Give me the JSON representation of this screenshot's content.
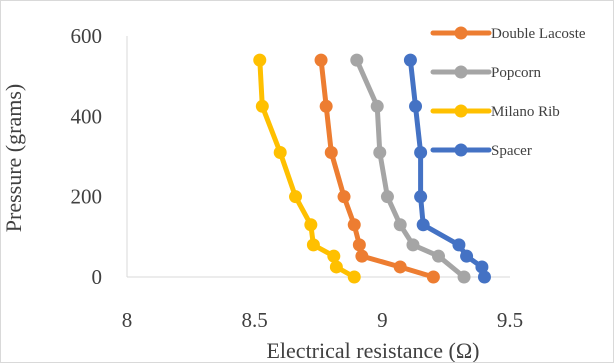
{
  "chart_data": {
    "type": "line",
    "title": "",
    "xlabel": "Electrical resistance (Ω)",
    "ylabel": "Pressure (grams)",
    "xlim": [
      8,
      9.5
    ],
    "ylim": [
      0,
      600
    ],
    "xticks": [
      "8",
      "8.5",
      "9",
      "9.5"
    ],
    "yticks": [
      "0",
      "200",
      "400",
      "600"
    ],
    "grid": false,
    "legend_position": "top-right",
    "series": [
      {
        "name": "Double Lacoste",
        "color": "#ED7D31",
        "points": [
          [
            9.2,
            0
          ],
          [
            9.07,
            25
          ],
          [
            8.92,
            52
          ],
          [
            8.91,
            80
          ],
          [
            8.89,
            130
          ],
          [
            8.85,
            200
          ],
          [
            8.8,
            310
          ],
          [
            8.78,
            425
          ],
          [
            8.76,
            540
          ]
        ]
      },
      {
        "name": "Popcorn",
        "color": "#A5A5A5",
        "points": [
          [
            9.32,
            0
          ],
          [
            9.22,
            52
          ],
          [
            9.12,
            80
          ],
          [
            9.07,
            130
          ],
          [
            9.02,
            200
          ],
          [
            8.99,
            310
          ],
          [
            8.98,
            425
          ],
          [
            8.9,
            540
          ]
        ]
      },
      {
        "name": "Milano Rib",
        "color": "#FFC000",
        "points": [
          [
            8.89,
            0
          ],
          [
            8.82,
            25
          ],
          [
            8.81,
            52
          ],
          [
            8.73,
            80
          ],
          [
            8.72,
            130
          ],
          [
            8.66,
            200
          ],
          [
            8.6,
            310
          ],
          [
            8.53,
            425
          ],
          [
            8.52,
            540
          ]
        ]
      },
      {
        "name": "Spacer",
        "color": "#4472C4",
        "points": [
          [
            9.4,
            0
          ],
          [
            9.39,
            25
          ],
          [
            9.33,
            52
          ],
          [
            9.3,
            80
          ],
          [
            9.16,
            130
          ],
          [
            9.15,
            200
          ],
          [
            9.15,
            310
          ],
          [
            9.13,
            425
          ],
          [
            9.11,
            540
          ]
        ]
      }
    ]
  }
}
